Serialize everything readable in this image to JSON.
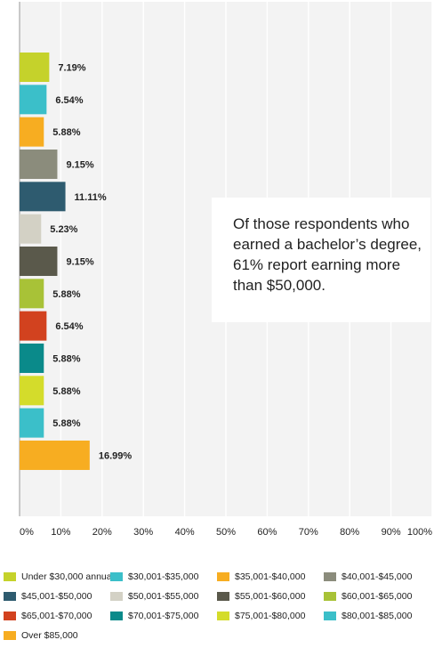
{
  "chart_data": {
    "type": "bar",
    "orientation": "horizontal",
    "categories": [
      "Under $30,000 annually",
      "$30,001-$35,000",
      "$35,001-$40,000",
      "$40,001-$45,000",
      "$45,001-$50,000",
      "$50,001-$55,000",
      "$55,001-$60,000",
      "$60,001-$65,000",
      "$65,001-$70,000",
      "$70,001-$75,000",
      "$75,001-$80,000",
      "$80,001-$85,000",
      "Over $85,000"
    ],
    "values": [
      7.19,
      6.54,
      5.88,
      9.15,
      11.11,
      5.23,
      9.15,
      5.88,
      6.54,
      5.88,
      5.88,
      5.88,
      16.99
    ],
    "value_labels": [
      "7.19%",
      "6.54%",
      "5.88%",
      "9.15%",
      "11.11%",
      "5.23%",
      "9.15%",
      "5.88%",
      "6.54%",
      "5.88%",
      "5.88%",
      "5.88%",
      "16.99%"
    ],
    "colors": [
      "#c5d22b",
      "#3bbfc9",
      "#f7ad21",
      "#8b8c7c",
      "#2e5b6f",
      "#d3d1c5",
      "#5a594b",
      "#a8c237",
      "#d2421f",
      "#0a8a8a",
      "#d4dc2b",
      "#3bbfc9",
      "#f7ad21"
    ],
    "xlim": [
      0,
      100
    ],
    "x_ticks": [
      0,
      10,
      20,
      30,
      40,
      50,
      60,
      70,
      80,
      90,
      100
    ],
    "x_tick_labels": [
      "0%",
      "10%",
      "20%",
      "30%",
      "40%",
      "50%",
      "60%",
      "70%",
      "80%",
      "90%",
      "100%"
    ],
    "grid": "vertical",
    "legend_placement": "bottom",
    "annotation_lines": [
      "Of those respondents who",
      "earned a bachelor’s degree,",
      "61% report earning more",
      "than $50,000."
    ]
  },
  "colors": {
    "plot_background": "#f3f3f3",
    "grid": "#ffffff",
    "axis": "#999999"
  }
}
